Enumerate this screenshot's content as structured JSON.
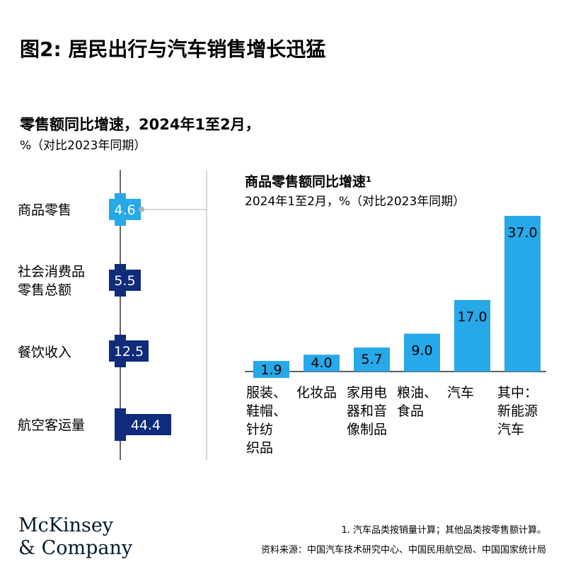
{
  "title": "图2: 居民出行与汽车销售增长迅猛",
  "chart_data": [
    {
      "type": "bar",
      "orientation": "horizontal",
      "title": "零售额同比增速，2024年1至2月，",
      "subtitle": "%（对比2023年同期）",
      "categories": [
        "商品零售",
        "社会消费品零售总额",
        "餐饮收入",
        "航空客运量"
      ],
      "category_lines": [
        [
          "商品零售"
        ],
        [
          "社会消费品",
          "零售总额"
        ],
        [
          "餐饮收入"
        ],
        [
          "航空客运量"
        ]
      ],
      "values": [
        4.6,
        5.5,
        12.5,
        44.4
      ],
      "data_labels": [
        "4.6",
        "5.5",
        "12.5",
        "44.4"
      ],
      "highlight_index": 0,
      "colors": {
        "highlight": "#27a8e8",
        "default": "#0f2b7a"
      }
    },
    {
      "type": "bar",
      "orientation": "vertical",
      "title": "商品零售额同比增速¹",
      "subtitle": "2024年1至2月，%（对比2023年同期）",
      "categories": [
        "服装、鞋帽、针纺织品",
        "化妆品",
        "家用电器和音像制品",
        "粮油、食品",
        "汽车",
        "其中：新能源汽车"
      ],
      "category_lines": [
        [
          "服装、",
          "鞋帽、",
          "针纺",
          "织品"
        ],
        [
          "化妆品"
        ],
        [
          "家用电",
          "器和音",
          "像制品"
        ],
        [
          "粮油、",
          "食品"
        ],
        [
          "汽车"
        ],
        [
          "其中：",
          "新能源",
          "汽车"
        ]
      ],
      "values": [
        1.9,
        4.0,
        5.7,
        9.0,
        17.0,
        37.0
      ],
      "data_labels": [
        "1.9",
        "4.0",
        "5.7",
        "9.0",
        "17.0",
        "37.0"
      ],
      "colors": {
        "bar": "#27a8e8"
      }
    }
  ],
  "footnote": "1.   汽车品类按销量计算；其他品类按零售额计算。",
  "source": "资料来源：中国汽车技术研究中心、中国民用航空局、中国国家统计局",
  "logo": {
    "line1": "McKinsey",
    "line2": "& Company"
  }
}
